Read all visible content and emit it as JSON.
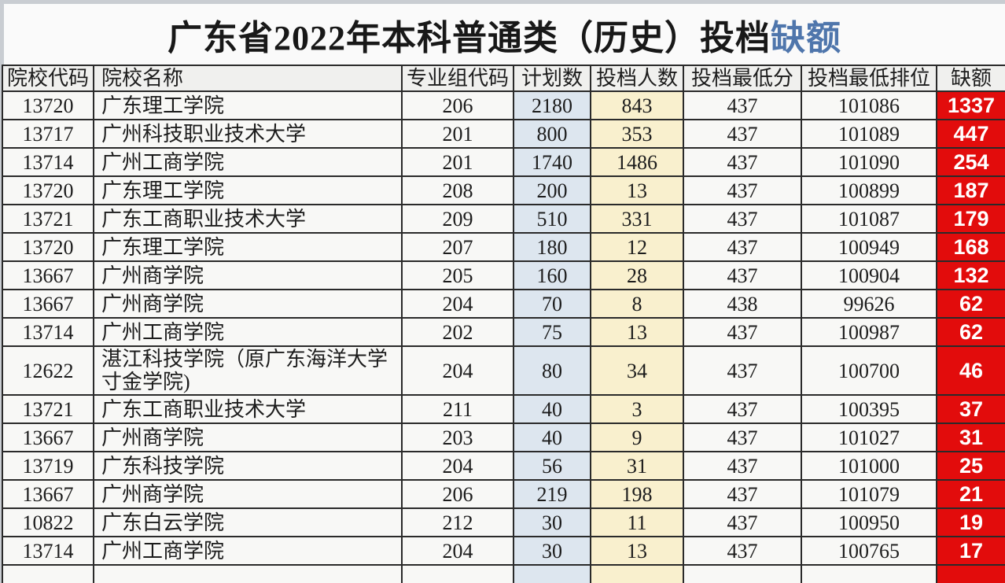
{
  "title": {
    "main": "广东省2022年本科普通类（历史）投档",
    "highlight": "缺额"
  },
  "colors": {
    "title_highlight": "#4f76ac",
    "plan_column_bg": "#dde6ef",
    "toudang_column_bg": "#f9f0ce",
    "quota_column_bg": "#e20c0c",
    "quota_text": "#ffffff",
    "border": "#2a2a2a"
  },
  "chart_data": {
    "type": "table",
    "title": "广东省2022年本科普通类（历史）投档缺额",
    "columns": [
      {
        "key": "code",
        "label": "院校代码"
      },
      {
        "key": "name",
        "label": "院校名称"
      },
      {
        "key": "group",
        "label": "专业组代码"
      },
      {
        "key": "plan",
        "label": "计划数"
      },
      {
        "key": "toudang",
        "label": "投档人数"
      },
      {
        "key": "score",
        "label": "投档最低分"
      },
      {
        "key": "rank",
        "label": "投档最低排位"
      },
      {
        "key": "quota",
        "label": "缺额"
      }
    ],
    "rows": [
      [
        "13720",
        "广东理工学院",
        "206",
        "2180",
        "843",
        "437",
        "101086",
        "1337"
      ],
      [
        "13717",
        "广州科技职业技术大学",
        "201",
        "800",
        "353",
        "437",
        "101089",
        "447"
      ],
      [
        "13714",
        "广州工商学院",
        "201",
        "1740",
        "1486",
        "437",
        "101090",
        "254"
      ],
      [
        "13720",
        "广东理工学院",
        "208",
        "200",
        "13",
        "437",
        "100899",
        "187"
      ],
      [
        "13721",
        "广东工商职业技术大学",
        "209",
        "510",
        "331",
        "437",
        "101087",
        "179"
      ],
      [
        "13720",
        "广东理工学院",
        "207",
        "180",
        "12",
        "437",
        "100949",
        "168"
      ],
      [
        "13667",
        "广州商学院",
        "205",
        "160",
        "28",
        "437",
        "100904",
        "132"
      ],
      [
        "13667",
        "广州商学院",
        "204",
        "70",
        "8",
        "438",
        "99626",
        "62"
      ],
      [
        "13714",
        "广州工商学院",
        "202",
        "75",
        "13",
        "437",
        "100987",
        "62"
      ],
      [
        "12622",
        "湛江科技学院（原广东海洋大学寸金学院)",
        "204",
        "80",
        "34",
        "437",
        "100700",
        "46"
      ],
      [
        "13721",
        "广东工商职业技术大学",
        "211",
        "40",
        "3",
        "437",
        "100395",
        "37"
      ],
      [
        "13667",
        "广州商学院",
        "203",
        "40",
        "9",
        "437",
        "101027",
        "31"
      ],
      [
        "13719",
        "广东科技学院",
        "204",
        "56",
        "31",
        "437",
        "101000",
        "25"
      ],
      [
        "13667",
        "广州商学院",
        "206",
        "219",
        "198",
        "437",
        "101079",
        "21"
      ],
      [
        "10822",
        "广东白云学院",
        "212",
        "30",
        "11",
        "437",
        "100950",
        "19"
      ],
      [
        "13714",
        "广州工商学院",
        "204",
        "30",
        "13",
        "437",
        "100765",
        "17"
      ],
      [
        "",
        "",
        "",
        "",
        "",
        "",
        "",
        ""
      ]
    ]
  }
}
